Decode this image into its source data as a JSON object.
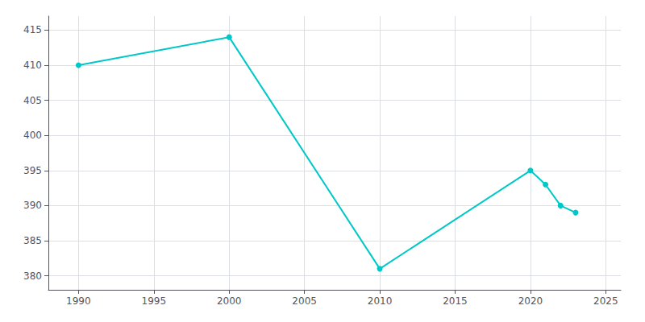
{
  "chart_data": {
    "type": "line",
    "x": [
      1990,
      2000,
      2010,
      2020,
      2021,
      2022,
      2023
    ],
    "values": [
      410,
      414,
      381,
      395,
      393,
      390,
      389
    ],
    "color": "#00c8c8",
    "marker": "circle",
    "xlim": [
      1988,
      2026
    ],
    "ylim": [
      378,
      417
    ],
    "xticks": [
      1990,
      1995,
      2000,
      2005,
      2010,
      2015,
      2020,
      2025
    ],
    "yticks": [
      380,
      385,
      390,
      395,
      400,
      405,
      410,
      415
    ],
    "grid": true
  }
}
